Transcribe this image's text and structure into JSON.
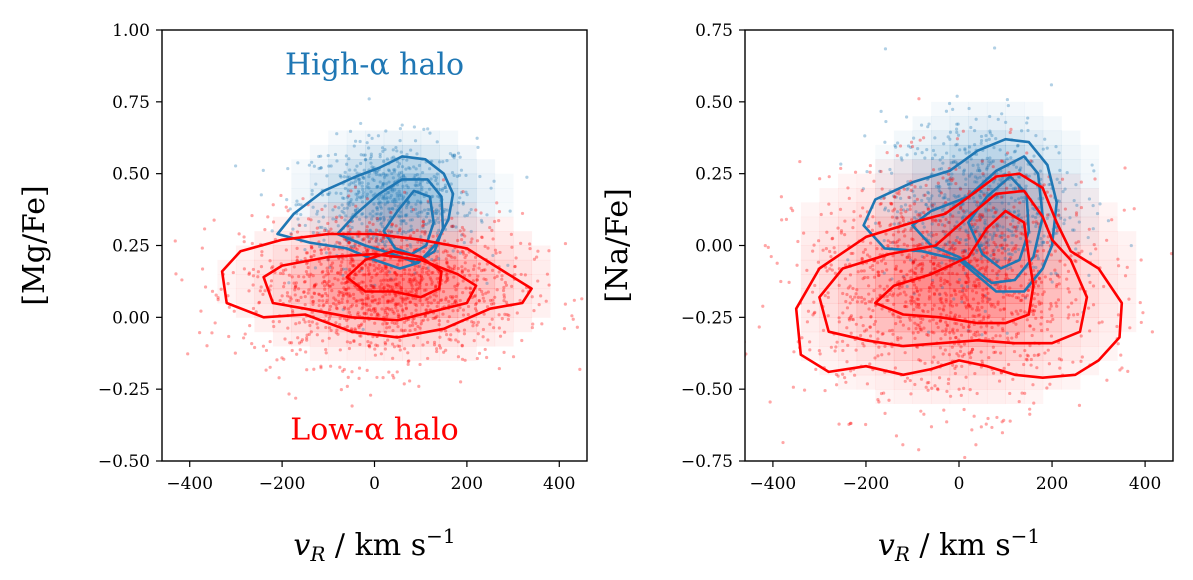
{
  "chart_data": [
    {
      "type": "scatter",
      "xlabel": "v_R / km s^-1",
      "ylabel": "[Mg/Fe]",
      "xlim": [
        -460,
        460
      ],
      "ylim": [
        -0.5,
        1.0
      ],
      "xticks": [
        -400,
        -200,
        0,
        200,
        400
      ],
      "yticks": [
        -0.5,
        -0.25,
        0.0,
        0.25,
        0.5,
        0.75,
        1.0
      ],
      "xtick_labels": [
        "−400",
        "−200",
        "0",
        "200",
        "400"
      ],
      "ytick_labels": [
        "−0.50",
        "−0.25",
        "0.00",
        "0.25",
        "0.50",
        "0.75",
        "1.00"
      ],
      "annotations": [
        {
          "text": "High-α halo",
          "color": "#1f77b4",
          "x": 0,
          "y": 0.88
        },
        {
          "text": "Low-α halo",
          "color": "#ff0000",
          "x": 0,
          "y": -0.39
        }
      ],
      "series": [
        {
          "name": "High-α halo",
          "color": "#1f77b4",
          "scatter_center": [
            30,
            0.4
          ],
          "scatter_spread": [
            95,
            0.11
          ],
          "n_points": 650,
          "contours": [
            [
              [
                -210,
                0.29
              ],
              [
                -175,
                0.36
              ],
              [
                -110,
                0.44
              ],
              [
                -40,
                0.49
              ],
              [
                10,
                0.52
              ],
              [
                60,
                0.56
              ],
              [
                110,
                0.55
              ],
              [
                150,
                0.5
              ],
              [
                170,
                0.43
              ],
              [
                160,
                0.34
              ],
              [
                130,
                0.25
              ],
              [
                95,
                0.19
              ],
              [
                55,
                0.17
              ],
              [
                0,
                0.2
              ],
              [
                -60,
                0.24
              ],
              [
                -140,
                0.26
              ],
              [
                -210,
                0.29
              ]
            ],
            [
              [
                -80,
                0.29
              ],
              [
                -40,
                0.36
              ],
              [
                10,
                0.43
              ],
              [
                60,
                0.48
              ],
              [
                115,
                0.48
              ],
              [
                145,
                0.42
              ],
              [
                148,
                0.31
              ],
              [
                130,
                0.23
              ],
              [
                90,
                0.19
              ],
              [
                40,
                0.22
              ],
              [
                -20,
                0.25
              ],
              [
                -80,
                0.29
              ]
            ],
            [
              [
                20,
                0.3
              ],
              [
                50,
                0.37
              ],
              [
                85,
                0.44
              ],
              [
                120,
                0.42
              ],
              [
                128,
                0.33
              ],
              [
                112,
                0.25
              ],
              [
                80,
                0.22
              ],
              [
                45,
                0.24
              ],
              [
                20,
                0.3
              ]
            ]
          ]
        },
        {
          "name": "Low-α halo",
          "color": "#ff0000",
          "scatter_center": [
            20,
            0.1
          ],
          "scatter_spread": [
            150,
            0.13
          ],
          "n_points": 1300,
          "contours": [
            [
              [
                -330,
                0.16
              ],
              [
                -290,
                0.23
              ],
              [
                -200,
                0.27
              ],
              [
                -100,
                0.29
              ],
              [
                0,
                0.29
              ],
              [
                100,
                0.27
              ],
              [
                200,
                0.24
              ],
              [
                280,
                0.16
              ],
              [
                340,
                0.1
              ],
              [
                320,
                0.05
              ],
              [
                250,
                0.03
              ],
              [
                150,
                -0.04
              ],
              [
                50,
                -0.07
              ],
              [
                -50,
                -0.05
              ],
              [
                -150,
                0.01
              ],
              [
                -240,
                0.0
              ],
              [
                -320,
                0.05
              ],
              [
                -330,
                0.16
              ]
            ],
            [
              [
                -240,
                0.14
              ],
              [
                -200,
                0.18
              ],
              [
                -100,
                0.21
              ],
              [
                0,
                0.22
              ],
              [
                100,
                0.2
              ],
              [
                180,
                0.15
              ],
              [
                220,
                0.11
              ],
              [
                200,
                0.05
              ],
              [
                150,
                0.03
              ],
              [
                50,
                -0.01
              ],
              [
                -50,
                0.0
              ],
              [
                -150,
                0.03
              ],
              [
                -220,
                0.05
              ],
              [
                -240,
                0.14
              ]
            ],
            [
              [
                -60,
                0.14
              ],
              [
                -20,
                0.2
              ],
              [
                40,
                0.23
              ],
              [
                100,
                0.21
              ],
              [
                145,
                0.16
              ],
              [
                140,
                0.1
              ],
              [
                100,
                0.07
              ],
              [
                40,
                0.09
              ],
              [
                -20,
                0.09
              ],
              [
                -60,
                0.14
              ]
            ]
          ]
        }
      ]
    },
    {
      "type": "scatter",
      "xlabel": "v_R / km s^-1",
      "ylabel": "[Na/Fe]",
      "xlim": [
        -460,
        460
      ],
      "ylim": [
        -0.75,
        0.75
      ],
      "xticks": [
        -400,
        -200,
        0,
        200,
        400
      ],
      "yticks": [
        -0.75,
        -0.5,
        -0.25,
        0.0,
        0.25,
        0.5,
        0.75
      ],
      "xtick_labels": [
        "−400",
        "−200",
        "0",
        "200",
        "400"
      ],
      "ytick_labels": [
        "−0.75",
        "−0.50",
        "−0.25",
        "0.00",
        "0.25",
        "0.50",
        "0.75"
      ],
      "series": [
        {
          "name": "High-α halo",
          "color": "#1f77b4",
          "scatter_center": [
            40,
            0.15
          ],
          "scatter_spread": [
            100,
            0.15
          ],
          "n_points": 650,
          "contours": [
            [
              [
                -205,
                0.07
              ],
              [
                -180,
                0.16
              ],
              [
                -100,
                0.22
              ],
              [
                -20,
                0.26
              ],
              [
                40,
                0.33
              ],
              [
                100,
                0.37
              ],
              [
                150,
                0.36
              ],
              [
                190,
                0.28
              ],
              [
                210,
                0.15
              ],
              [
                200,
                0.0
              ],
              [
                180,
                -0.08
              ],
              [
                140,
                -0.16
              ],
              [
                80,
                -0.16
              ],
              [
                0,
                -0.05
              ],
              [
                -80,
                -0.02
              ],
              [
                -160,
                -0.01
              ],
              [
                -205,
                0.07
              ]
            ],
            [
              [
                -100,
                0.07
              ],
              [
                -60,
                0.12
              ],
              [
                20,
                0.17
              ],
              [
                80,
                0.26
              ],
              [
                140,
                0.31
              ],
              [
                170,
                0.25
              ],
              [
                180,
                0.1
              ],
              [
                160,
                -0.04
              ],
              [
                120,
                -0.12
              ],
              [
                70,
                -0.13
              ],
              [
                0,
                -0.04
              ],
              [
                -60,
                0.0
              ],
              [
                -100,
                0.07
              ]
            ],
            [
              [
                20,
                0.08
              ],
              [
                60,
                0.17
              ],
              [
                110,
                0.24
              ],
              [
                145,
                0.18
              ],
              [
                150,
                0.05
              ],
              [
                130,
                -0.05
              ],
              [
                90,
                -0.08
              ],
              [
                50,
                -0.03
              ],
              [
                20,
                0.08
              ]
            ]
          ]
        },
        {
          "name": "Low-α halo",
          "color": "#ff0000",
          "scatter_center": [
            -20,
            -0.15
          ],
          "scatter_spread": [
            160,
            0.2
          ],
          "n_points": 1300,
          "contours": [
            [
              [
                -350,
                -0.22
              ],
              [
                -300,
                -0.08
              ],
              [
                -200,
                0.03
              ],
              [
                -100,
                0.08
              ],
              [
                -30,
                0.11
              ],
              [
                30,
                0.18
              ],
              [
                80,
                0.24
              ],
              [
                130,
                0.25
              ],
              [
                180,
                0.2
              ],
              [
                210,
                0.08
              ],
              [
                240,
                -0.02
              ],
              [
                300,
                -0.08
              ],
              [
                350,
                -0.2
              ],
              [
                345,
                -0.32
              ],
              [
                300,
                -0.4
              ],
              [
                250,
                -0.45
              ],
              [
                180,
                -0.46
              ],
              [
                120,
                -0.45
              ],
              [
                60,
                -0.42
              ],
              [
                0,
                -0.4
              ],
              [
                -60,
                -0.43
              ],
              [
                -120,
                -0.45
              ],
              [
                -200,
                -0.42
              ],
              [
                -280,
                -0.44
              ],
              [
                -340,
                -0.38
              ],
              [
                -350,
                -0.22
              ]
            ],
            [
              [
                -300,
                -0.18
              ],
              [
                -250,
                -0.08
              ],
              [
                -150,
                -0.03
              ],
              [
                -50,
                0.0
              ],
              [
                20,
                0.1
              ],
              [
                80,
                0.18
              ],
              [
                140,
                0.19
              ],
              [
                180,
                0.1
              ],
              [
                200,
                0.02
              ],
              [
                240,
                -0.05
              ],
              [
                275,
                -0.18
              ],
              [
                260,
                -0.3
              ],
              [
                200,
                -0.34
              ],
              [
                120,
                -0.34
              ],
              [
                40,
                -0.33
              ],
              [
                -40,
                -0.34
              ],
              [
                -120,
                -0.35
              ],
              [
                -200,
                -0.33
              ],
              [
                -280,
                -0.3
              ],
              [
                -300,
                -0.18
              ]
            ],
            [
              [
                -180,
                -0.2
              ],
              [
                -140,
                -0.14
              ],
              [
                -60,
                -0.1
              ],
              [
                20,
                -0.04
              ],
              [
                60,
                0.06
              ],
              [
                100,
                0.12
              ],
              [
                140,
                0.08
              ],
              [
                150,
                -0.04
              ],
              [
                160,
                -0.14
              ],
              [
                150,
                -0.24
              ],
              [
                100,
                -0.27
              ],
              [
                40,
                -0.27
              ],
              [
                -40,
                -0.25
              ],
              [
                -120,
                -0.24
              ],
              [
                -180,
                -0.2
              ]
            ]
          ]
        }
      ]
    }
  ]
}
